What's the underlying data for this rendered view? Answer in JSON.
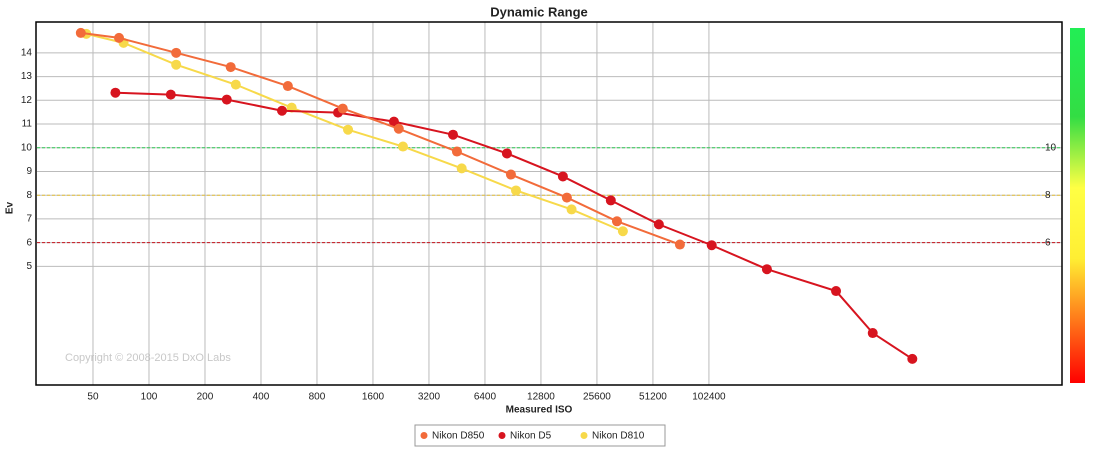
{
  "chart_data": {
    "type": "line",
    "title": "Dynamic Range",
    "x_label": "Measured ISO",
    "y_label": "Ev",
    "annotation": "Copyright © 2008-2015 DxO Labs",
    "x_scale": "log",
    "xlim": [
      25,
      8100000
    ],
    "xticks": [
      50,
      100,
      200,
      400,
      800,
      1600,
      3200,
      6400,
      12800,
      25600,
      51200,
      102400
    ],
    "ylim": [
      0,
      15.3
    ],
    "yticks": [
      5,
      6,
      7,
      8,
      9,
      10,
      11,
      12,
      13,
      14
    ],
    "grid": true,
    "reference_lines": [
      {
        "value": 10,
        "color": "#2ecc55"
      },
      {
        "value": 8,
        "color": "#e6c13a"
      },
      {
        "value": 6,
        "color": "#c8141e"
      }
    ],
    "legend": "bottom",
    "series": [
      {
        "name": "Nikon D850",
        "color": "#f26b3a",
        "x": [
          43,
          69,
          140,
          275,
          558,
          1101,
          2202,
          4525,
          8830,
          17650,
          32800,
          71500
        ],
        "values": [
          14.84,
          14.63,
          14.0,
          13.4,
          12.6,
          11.65,
          10.8,
          9.84,
          8.87,
          7.9,
          6.9,
          5.92
        ]
      },
      {
        "name": "Nikon D5",
        "color": "#d7141f",
        "x": [
          66,
          131,
          262,
          519,
          1038,
          2075,
          4310,
          8400,
          16800,
          30400,
          55100,
          106000,
          210000,
          494000,
          778000,
          1270000
        ],
        "values": [
          12.32,
          12.24,
          12.03,
          11.56,
          11.48,
          11.1,
          10.55,
          9.76,
          8.79,
          7.78,
          6.77,
          5.89,
          4.88,
          3.96,
          2.19,
          1.1
        ]
      },
      {
        "name": "Nikon D810",
        "color": "#f7d94a",
        "x": [
          46,
          73,
          140,
          293,
          585,
          1175,
          2320,
          4800,
          9400,
          18700,
          35300
        ],
        "values": [
          14.8,
          14.42,
          13.5,
          12.66,
          11.69,
          10.76,
          10.05,
          9.13,
          8.2,
          7.4,
          6.48
        ]
      }
    ]
  }
}
